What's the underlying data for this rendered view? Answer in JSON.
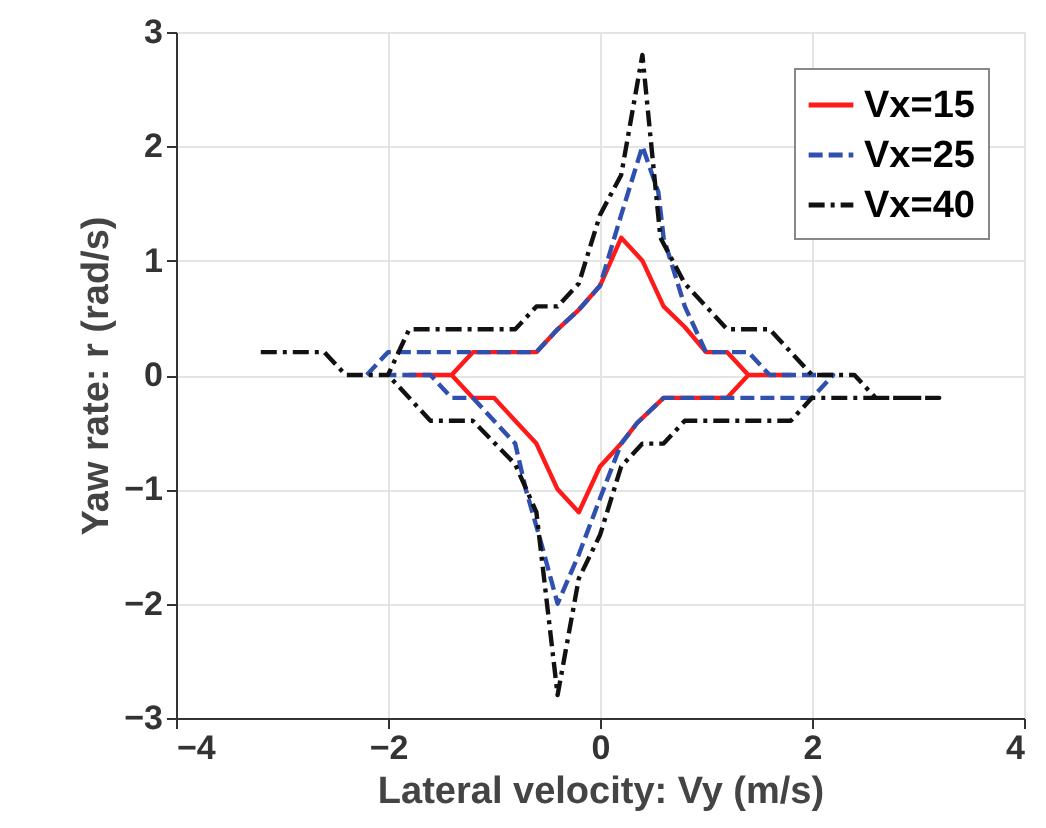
{
  "chart_data": {
    "type": "line",
    "xlabel": "Lateral velocity: Vy (m/s)",
    "ylabel": "Yaw rate: r (rad/s)",
    "xlim": [
      -4,
      4
    ],
    "xticks": [
      -4,
      -2,
      0,
      2,
      4
    ],
    "ylim": [
      -3,
      3
    ],
    "yticks": [
      -3,
      -2,
      -1,
      0,
      1,
      2,
      3
    ],
    "grid": true,
    "legend": "top right",
    "marker": "none",
    "series": [
      {
        "name": "Vx=15",
        "color": "#ff1a1a",
        "line_style": "solid",
        "x": [
          -1.8,
          -1.4,
          -1.2,
          -0.6,
          -0.4,
          -0.2,
          0,
          0.2,
          0.4,
          0.6,
          0.8,
          1.0,
          1.2,
          1.4,
          1.8,
          1.4,
          1.2,
          0.6,
          0.35,
          0.2,
          0,
          -0.2,
          -0.4,
          -0.6,
          -0.8,
          -1.0,
          -1.2,
          -1.4
        ],
        "values": [
          0,
          0,
          0.2,
          0.2,
          0.4,
          0.57,
          0.78,
          1.2,
          1.0,
          0.6,
          0.42,
          0.2,
          0.2,
          0,
          0,
          0,
          -0.2,
          -0.2,
          -0.42,
          -0.6,
          -0.8,
          -1.2,
          -1.0,
          -0.6,
          -0.4,
          -0.2,
          -0.2,
          0
        ]
      },
      {
        "name": "Vx=25",
        "color": "#3050b0",
        "line_style": "dashed",
        "x": [
          -2.2,
          -2.0,
          -0.6,
          -0.4,
          -0.2,
          0,
          0.2,
          0.4,
          0.55,
          0.6,
          0.8,
          1.0,
          1.4,
          1.6,
          2.2,
          2.0,
          0.6,
          0.35,
          0.2,
          0,
          -0.2,
          -0.4,
          -0.57,
          -0.7,
          -0.8,
          -1.2,
          -1.4,
          -1.6,
          -2.0
        ],
        "values": [
          0,
          0.2,
          0.2,
          0.4,
          0.57,
          0.78,
          1.4,
          2.0,
          1.6,
          1.2,
          0.6,
          0.2,
          0.2,
          0,
          0,
          -0.2,
          -0.2,
          -0.42,
          -0.6,
          -1.08,
          -1.57,
          -2.0,
          -1.42,
          -1.0,
          -0.6,
          -0.2,
          -0.2,
          0,
          0
        ]
      },
      {
        "name": "Vx=40",
        "color": "#111111",
        "line_style": "dashdot",
        "x": [
          -3.2,
          -2.6,
          -2.4,
          -2.0,
          -1.8,
          -0.8,
          -0.6,
          -0.4,
          -0.2,
          0,
          0.2,
          0.4,
          0.57,
          0.8,
          1.2,
          1.6,
          2.0,
          2.4,
          2.6,
          3.2,
          2.0,
          1.8,
          0.8,
          0.6,
          0.4,
          0.2,
          0,
          -0.2,
          -0.4,
          -0.6,
          -0.8,
          -1.2,
          -1.6,
          -2.0
        ],
        "values": [
          0.2,
          0.2,
          0,
          0,
          0.4,
          0.4,
          0.6,
          0.6,
          0.8,
          1.4,
          1.75,
          2.8,
          1.2,
          0.8,
          0.4,
          0.4,
          0,
          0,
          -0.2,
          -0.2,
          -0.2,
          -0.4,
          -0.4,
          -0.6,
          -0.6,
          -0.8,
          -1.4,
          -1.78,
          -2.8,
          -1.2,
          -0.78,
          -0.4,
          -0.4,
          0
        ]
      }
    ]
  }
}
